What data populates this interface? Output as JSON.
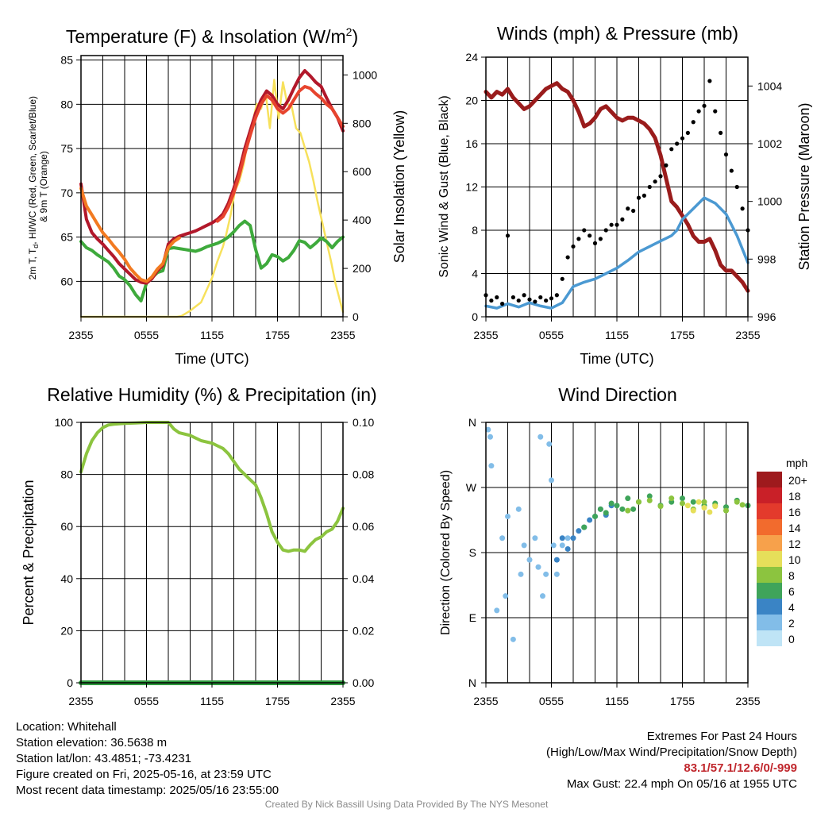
{
  "chart_data": [
    {
      "type": "line",
      "title": "Temperature (F) & Insolation (W/m²)",
      "xlabel": "Time (UTC)",
      "ylabel": "2m T, Td, HI/WC (Red, Green, Scarlet/Blue) & 9m T (Orange)",
      "ylabel_line1": "2m T, T",
      "ylabel_sub": "d",
      "ylabel_line1_rest": ", HI/WC (Red, Green, Scarlet/Blue)",
      "ylabel_line2": "& 9m T (Orange)",
      "y2label": "Solar Insolation (Yellow)",
      "x_ticks": [
        "2355",
        "0555",
        "1155",
        "1755",
        "2355"
      ],
      "x_range_hours": [
        0,
        24
      ],
      "ylim": [
        56,
        85.5
      ],
      "y_ticks": [
        60,
        65,
        70,
        75,
        80,
        85
      ],
      "y2lim": [
        0,
        1080
      ],
      "y2_ticks": [
        0,
        200,
        400,
        600,
        800,
        1000
      ],
      "grid": true,
      "colors": {
        "temp": "#b2182b",
        "heat_index": "#e7442e",
        "temp_9m": "#f27a21",
        "dewpoint": "#3eaa3c",
        "insolation": "#f7e15c"
      },
      "series": {
        "temp": {
          "x": [
            0,
            0.5,
            1,
            1.5,
            2,
            2.5,
            3,
            3.5,
            4,
            4.5,
            5,
            5.5,
            6,
            6.5,
            7,
            7.5,
            8,
            8.5,
            9,
            9.5,
            10,
            10.5,
            11,
            11.5,
            12,
            12.5,
            13,
            13.5,
            14,
            14.5,
            15,
            15.5,
            16,
            16.5,
            17,
            17.5,
            18,
            18.5,
            19,
            19.5,
            20,
            20.5,
            21,
            21.5,
            22,
            22.5,
            23,
            23.5,
            24
          ],
          "y": [
            71,
            67,
            65.5,
            64.8,
            64.2,
            63.5,
            62.8,
            62,
            61.4,
            60.8,
            60.2,
            59.9,
            59.8,
            60.3,
            61.2,
            61.8,
            64.2,
            64.8,
            65.1,
            65.3,
            65.5,
            65.7,
            66,
            66.3,
            66.6,
            67,
            67.6,
            68.8,
            70.5,
            72.5,
            75,
            77,
            79,
            80.5,
            81.5,
            81,
            80,
            79.5,
            80.5,
            81.8,
            83,
            83.8,
            83.2,
            82.5,
            82,
            80.7,
            79.5,
            78.5,
            77
          ]
        },
        "heat_index": {
          "x": [
            12.5,
            13,
            13.5,
            14,
            14.5,
            15,
            15.5,
            16,
            16.5,
            17,
            17.5,
            18,
            18.5,
            19,
            19.5,
            20,
            20.5,
            21,
            21.5,
            22,
            22.5,
            23,
            23.5,
            24
          ],
          "y": [
            66.8,
            67.3,
            68.4,
            70,
            72,
            74.4,
            76.5,
            78.5,
            80,
            81,
            80.5,
            79.5,
            79,
            79.5,
            80.5,
            81.5,
            82,
            81.8,
            81.2,
            80.7,
            80,
            79.5,
            78.5,
            77.5
          ]
        },
        "temp_9m": {
          "x": [
            0,
            0.5,
            1,
            1.5,
            2,
            2.5,
            3,
            3.5,
            4,
            4.5,
            5,
            5.5,
            6,
            6.5,
            7,
            7.5,
            8,
            8.5,
            9
          ],
          "y": [
            70.5,
            68.5,
            67.5,
            66.5,
            65.5,
            64.8,
            64,
            63.3,
            62.5,
            61.5,
            60.8,
            60.2,
            60,
            60.5,
            61.4,
            62,
            63.8,
            64.5,
            64.9
          ]
        },
        "dewpoint": {
          "x": [
            0,
            0.5,
            1,
            1.5,
            2,
            2.5,
            3,
            3.5,
            4,
            4.5,
            5,
            5.5,
            6,
            6.5,
            7,
            7.5,
            8,
            8.5,
            9,
            9.5,
            10,
            10.5,
            11,
            11.5,
            12,
            12.5,
            13,
            13.5,
            14,
            14.5,
            15,
            15.5,
            16,
            16.5,
            17,
            17.5,
            18,
            18.5,
            19,
            19.5,
            20,
            20.5,
            21,
            21.5,
            22,
            22.5,
            23,
            23.5,
            24
          ],
          "y": [
            64.5,
            63.8,
            63.5,
            63,
            62.6,
            62.2,
            61.5,
            60.6,
            60.2,
            59.5,
            58.5,
            57.8,
            59.8,
            60.4,
            61,
            61.2,
            63.7,
            63.8,
            63.7,
            63.6,
            63.5,
            63.4,
            63.6,
            63.9,
            64.1,
            64.3,
            64.6,
            65,
            65.6,
            66.3,
            66.8,
            66.3,
            63.6,
            61.5,
            62,
            63,
            62.8,
            62.3,
            62.7,
            63.5,
            64.6,
            64.4,
            63.8,
            64.3,
            64.9,
            64.5,
            63.8,
            64.5,
            65
          ]
        },
        "insolation": {
          "x": [
            0,
            4,
            8,
            8.8,
            9.2,
            10,
            11,
            11.5,
            12,
            12.5,
            13,
            13.3,
            13.7,
            14.1,
            14.5,
            14.9,
            15.3,
            15.7,
            16.1,
            16.5,
            16.9,
            17.3,
            17.7,
            18.1,
            18.5,
            18.9,
            19.3,
            19.7,
            20.1,
            20.5,
            20.9,
            21.3,
            21.7,
            22.1,
            22.5,
            22.9,
            23.3,
            23.7,
            24
          ],
          "y": [
            0,
            0,
            0,
            0,
            3,
            25,
            60,
            110,
            160,
            230,
            290,
            340,
            420,
            520,
            560,
            630,
            730,
            800,
            880,
            860,
            930,
            780,
            980,
            820,
            970,
            880,
            870,
            780,
            760,
            700,
            640,
            560,
            470,
            390,
            310,
            230,
            140,
            70,
            20
          ]
        }
      }
    },
    {
      "type": "line",
      "title": "Winds (mph) & Pressure (mb)",
      "xlabel": "Time (UTC)",
      "ylabel": "Sonic Wind & Gust (Blue, Black)",
      "y2label": "Station Pressure (Maroon)",
      "x_ticks": [
        "2355",
        "0555",
        "1155",
        "1755",
        "2355"
      ],
      "x_range_hours": [
        0,
        24
      ],
      "ylim": [
        0,
        24
      ],
      "y_ticks": [
        0,
        4,
        8,
        12,
        16,
        20,
        24
      ],
      "y2lim": [
        996,
        1005
      ],
      "y2_ticks": [
        996,
        998,
        1000,
        1002,
        1004
      ],
      "grid": true,
      "colors": {
        "wind": "#4b99d2",
        "gust": "#000000",
        "pressure": "#9a1c1c"
      },
      "series": {
        "wind": {
          "x": [
            0,
            1,
            2,
            3,
            4,
            5,
            6,
            7,
            8,
            9,
            10,
            11,
            12,
            13,
            14,
            15,
            16,
            17,
            17.5,
            18,
            19,
            20,
            21,
            22,
            23,
            24
          ],
          "y": [
            1,
            0.8,
            1.2,
            0.9,
            1.3,
            1,
            0.8,
            1.3,
            2.8,
            3.2,
            3.5,
            4,
            4.5,
            5.2,
            6,
            6.5,
            7,
            7.5,
            8,
            9,
            10,
            11,
            10.5,
            9.5,
            7.5,
            5
          ]
        },
        "gust": {
          "x": [
            0,
            0.5,
            1,
            1.5,
            2,
            2.5,
            3,
            3.5,
            4,
            4.5,
            5,
            5.5,
            6,
            6.5,
            7,
            7.5,
            8,
            8.5,
            9,
            9.5,
            10,
            10.5,
            11,
            11.5,
            12,
            12.5,
            13,
            13.5,
            14,
            14.5,
            15,
            15.5,
            16,
            16.5,
            17,
            17.5,
            18,
            18.5,
            19,
            19.5,
            20,
            20.5,
            21,
            21.5,
            22,
            22.5,
            23,
            23.5,
            24
          ],
          "y": [
            2,
            1.5,
            1.8,
            1.2,
            7.5,
            1.8,
            1.5,
            2,
            1.6,
            1.4,
            1.8,
            1.5,
            1.7,
            2,
            3.5,
            5.5,
            6.5,
            7.2,
            8,
            7.5,
            6.8,
            7.2,
            8,
            8.5,
            8.5,
            9,
            10,
            9.8,
            11,
            11.2,
            12,
            12.5,
            13,
            14,
            15.5,
            16,
            16.5,
            17,
            18,
            19,
            19.5,
            21.8,
            19,
            17,
            15,
            13.5,
            12,
            10,
            8
          ]
        },
        "pressure": {
          "x": [
            0,
            0.5,
            1,
            1.5,
            2,
            2.5,
            3,
            3.5,
            4,
            4.5,
            5,
            5.5,
            6,
            6.5,
            7,
            7.5,
            8,
            8.5,
            9,
            9.5,
            10,
            10.5,
            11,
            11.5,
            12,
            12.5,
            13,
            13.5,
            14,
            14.5,
            15,
            15.5,
            16,
            16.5,
            17,
            17.5,
            18,
            18.5,
            19,
            19.5,
            20,
            20.5,
            21,
            21.5,
            22,
            22.5,
            23,
            23.5,
            24
          ],
          "y": [
            1003.8,
            1003.6,
            1003.8,
            1003.7,
            1003.9,
            1003.6,
            1003.4,
            1003.2,
            1003.3,
            1003.5,
            1003.7,
            1003.9,
            1004,
            1004.1,
            1003.9,
            1003.8,
            1003.5,
            1003.1,
            1002.6,
            1002.7,
            1002.9,
            1003.2,
            1003.3,
            1003.1,
            1002.9,
            1002.8,
            1002.9,
            1002.9,
            1002.8,
            1002.7,
            1002.5,
            1002.2,
            1001.6,
            1000.8,
            1000,
            999.8,
            999.5,
            999.2,
            998.8,
            998.6,
            998.6,
            998.7,
            998.3,
            997.8,
            997.6,
            997.6,
            997.4,
            997.2,
            996.9
          ]
        }
      }
    },
    {
      "type": "line",
      "title": "Relative Humidity (%) & Precipitation (in)",
      "ylabel": "Percent & Precipitation",
      "x_ticks": [
        "2355",
        "0555",
        "1155",
        "1755",
        "2355"
      ],
      "x_range_hours": [
        0,
        24
      ],
      "ylim": [
        0,
        100
      ],
      "y_ticks": [
        0,
        20,
        40,
        60,
        80,
        100
      ],
      "y2lim": [
        0,
        0.1
      ],
      "y2_ticks": [
        "0.00",
        "0.02",
        "0.04",
        "0.06",
        "0.08",
        "0.10"
      ],
      "grid": true,
      "colors": {
        "rh": "#8cc43f",
        "precip": "#2f9a3e"
      },
      "series": {
        "rh": {
          "x": [
            0,
            0.5,
            1,
            1.5,
            2,
            2.5,
            3,
            4,
            5,
            6,
            7,
            8,
            8.5,
            9,
            10,
            11,
            12,
            12.5,
            13,
            13.5,
            14,
            14.5,
            15,
            15.5,
            16,
            16.5,
            17,
            17.5,
            18,
            18.5,
            19,
            19.5,
            20,
            20.5,
            21,
            21.5,
            22,
            22.5,
            23,
            23.5,
            24
          ],
          "y": [
            81,
            88,
            93,
            96,
            98,
            99,
            99.3,
            99.6,
            99.8,
            100,
            100,
            100,
            97.5,
            96,
            95,
            93,
            92,
            91,
            90,
            88,
            85,
            82,
            80,
            78,
            76,
            71,
            65,
            58,
            54,
            51,
            50.5,
            51,
            51,
            50.5,
            53,
            55,
            56,
            58,
            59,
            62,
            67
          ]
        },
        "precip": {
          "x": [
            0,
            24
          ],
          "y": [
            0,
            0
          ]
        }
      }
    },
    {
      "type": "scatter",
      "title": "Wind Direction",
      "ylabel": "Direction (Colored By Speed)",
      "x_ticks": [
        "2355",
        "0555",
        "1155",
        "1755",
        "2355"
      ],
      "x_range_hours": [
        0,
        24
      ],
      "y_ticks": [
        "N",
        "E",
        "S",
        "W",
        "N"
      ],
      "ylim_degrees": [
        0,
        360
      ],
      "grid": true,
      "legend": {
        "title": "mph",
        "labels": [
          "20+",
          "18",
          "16",
          "14",
          "12",
          "10",
          "8",
          "6",
          "4",
          "2",
          "0"
        ],
        "colors": [
          "#9e1a1d",
          "#c92028",
          "#e33a2c",
          "#f26b2d",
          "#f7a14b",
          "#e6df5a",
          "#8cc43f",
          "#3fa45a",
          "#3a84c5",
          "#82bde8",
          "#bfe4f6"
        ],
        "position": "right"
      },
      "series": [
        {
          "name": "0-2",
          "x": [
            0.2,
            0.4,
            0.5,
            1,
            1.5,
            1.8,
            2,
            2.5,
            3,
            3.2,
            3.5,
            4,
            4.5,
            4.8,
            5,
            5.2,
            5.5,
            5.8,
            6,
            6.2,
            6.5,
            7,
            7.5
          ],
          "y": [
            350,
            340,
            300,
            100,
            200,
            120,
            230,
            60,
            240,
            150,
            190,
            170,
            200,
            160,
            340,
            120,
            150,
            330,
            280,
            190,
            150,
            190,
            200
          ]
        },
        {
          "name": "2-4",
          "x": [
            6.5,
            7,
            7.5,
            8,
            8.5,
            9,
            9.5,
            10,
            10.5,
            11,
            11.5
          ],
          "y": [
            170,
            200,
            185,
            200,
            210,
            215,
            225,
            230,
            240,
            232,
            245
          ]
        },
        {
          "name": "4-6",
          "x": [
            9,
            10,
            10.5,
            11,
            11.5,
            12,
            12.5,
            13,
            13.5,
            14,
            15,
            16,
            17,
            18,
            19,
            20,
            21,
            22,
            23,
            24
          ],
          "y": [
            215,
            230,
            240,
            235,
            248,
            245,
            240,
            255,
            240,
            250,
            258,
            245,
            250,
            255,
            250,
            245,
            248,
            243,
            252,
            245
          ]
        },
        {
          "name": "6-8",
          "x": [
            13,
            14,
            15,
            16,
            17,
            18,
            19,
            20,
            21,
            22,
            23,
            23.5
          ],
          "y": [
            238,
            250,
            252,
            244,
            255,
            248,
            240,
            250,
            245,
            238,
            250,
            246
          ]
        },
        {
          "name": "10-12",
          "x": [
            18.5,
            19,
            19.5,
            20,
            20.5,
            21
          ],
          "y": [
            245,
            238,
            250,
            242,
            236,
            244
          ]
        }
      ]
    }
  ],
  "info": {
    "location": "Location: Whitehall",
    "elevation": "Station elevation: 36.5638 m",
    "latlon": "Station lat/lon: 43.4851; -73.4231",
    "created": "Figure created on Fri, 2025-05-16, at 23:59 UTC",
    "recent": "Most recent data timestamp: 2025/05/16 23:55:00"
  },
  "extremes": {
    "heading": "Extremes For Past 24 Hours",
    "legend": "(High/Low/Max Wind/Precipitation/Snow Depth)",
    "values": "83.1/57.1/12.6/0/-999",
    "max_gust": "Max Gust: 22.4 mph On 05/16 at 1955 UTC"
  },
  "credit": "Created By Nick Bassill Using Data Provided By The NYS Mesonet"
}
